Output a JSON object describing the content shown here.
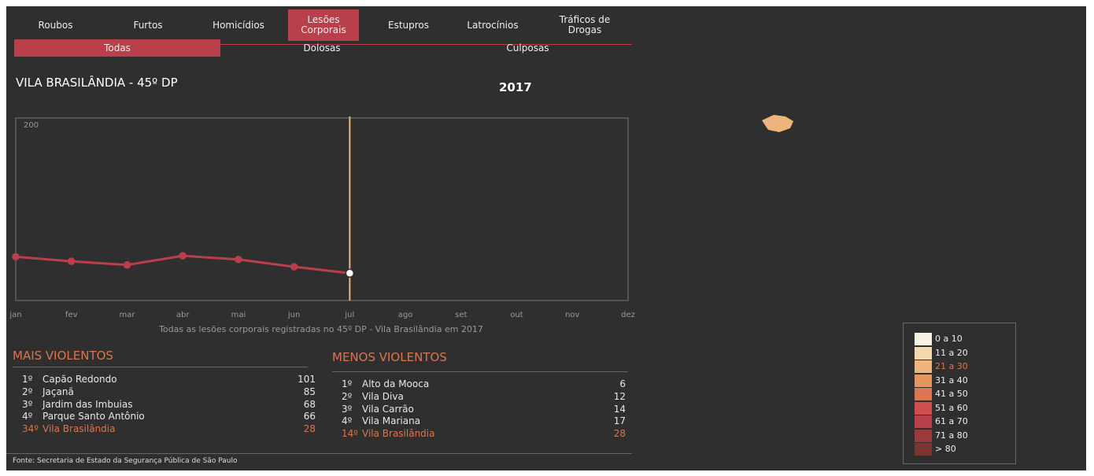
{
  "tabs": [
    "Roubos",
    "Furtos",
    "Homicídios",
    "Lesões Corporais",
    "Estupros",
    "Latrocínios",
    "Tráficos de Drogas"
  ],
  "subtabs": [
    "Todas",
    "Dolosas",
    "Culposas"
  ],
  "place": "VILA BRASILÂNDIA - 45º DP",
  "year": "2017",
  "chart_data": {
    "type": "line",
    "categories": [
      "jan",
      "fev",
      "mar",
      "abr",
      "mai",
      "jun",
      "jul",
      "ago",
      "set",
      "out",
      "nov",
      "dez"
    ],
    "values": [
      48,
      43,
      39,
      49,
      45,
      37,
      30,
      null,
      null,
      null,
      null,
      null
    ],
    "color": "#b9404a",
    "ylim": [
      0,
      200
    ],
    "yticks": [
      200
    ],
    "caption": "Todas as lesões corporais registradas no 45º DP - Vila Brasilândia em 2017"
  },
  "rankings": [
    {
      "title": "MAIS VIOLENTOS",
      "items": [
        {
          "rank": "1º",
          "name": "Capão Redondo",
          "value": 101
        },
        {
          "rank": "2º",
          "name": "Jaçanã",
          "value": 85
        },
        {
          "rank": "3º",
          "name": "Jardim das Imbuias",
          "value": 68
        },
        {
          "rank": "4º",
          "name": "Parque Santo Antônio",
          "value": 66
        },
        {
          "rank": "34º",
          "name": "Vila Brasilândia",
          "value": 28
        }
      ]
    },
    {
      "title": "MENOS VIOLENTOS",
      "items": [
        {
          "rank": "1º",
          "name": "Alto da Mooca",
          "value": 6
        },
        {
          "rank": "2º",
          "name": "Vila Diva",
          "value": 12
        },
        {
          "rank": "3º",
          "name": "Vila Carrão",
          "value": 14
        },
        {
          "rank": "4º",
          "name": "Vila Mariana",
          "value": 17
        },
        {
          "rank": "14º",
          "name": "Vila Brasilândia",
          "value": 28
        }
      ]
    }
  ],
  "legend": [
    {
      "label": "0 a 10",
      "color": "#f6f1e3"
    },
    {
      "label": "11 a 20",
      "color": "#f3d8ae"
    },
    {
      "label": "21 a 30",
      "color": "#edb47b"
    },
    {
      "label": "31 a 40",
      "color": "#e5955f"
    },
    {
      "label": "41 a 50",
      "color": "#dc7651"
    },
    {
      "label": "51 a 60",
      "color": "#cf4d4c"
    },
    {
      "label": "61 a 70",
      "color": "#b9404a"
    },
    {
      "label": "71 a 80",
      "color": "#9a3a3b"
    },
    {
      "label": "> 80",
      "color": "#7a3530"
    }
  ],
  "source": "Fonte: Secretaria de Estado da Segurança Pública de São Paulo"
}
